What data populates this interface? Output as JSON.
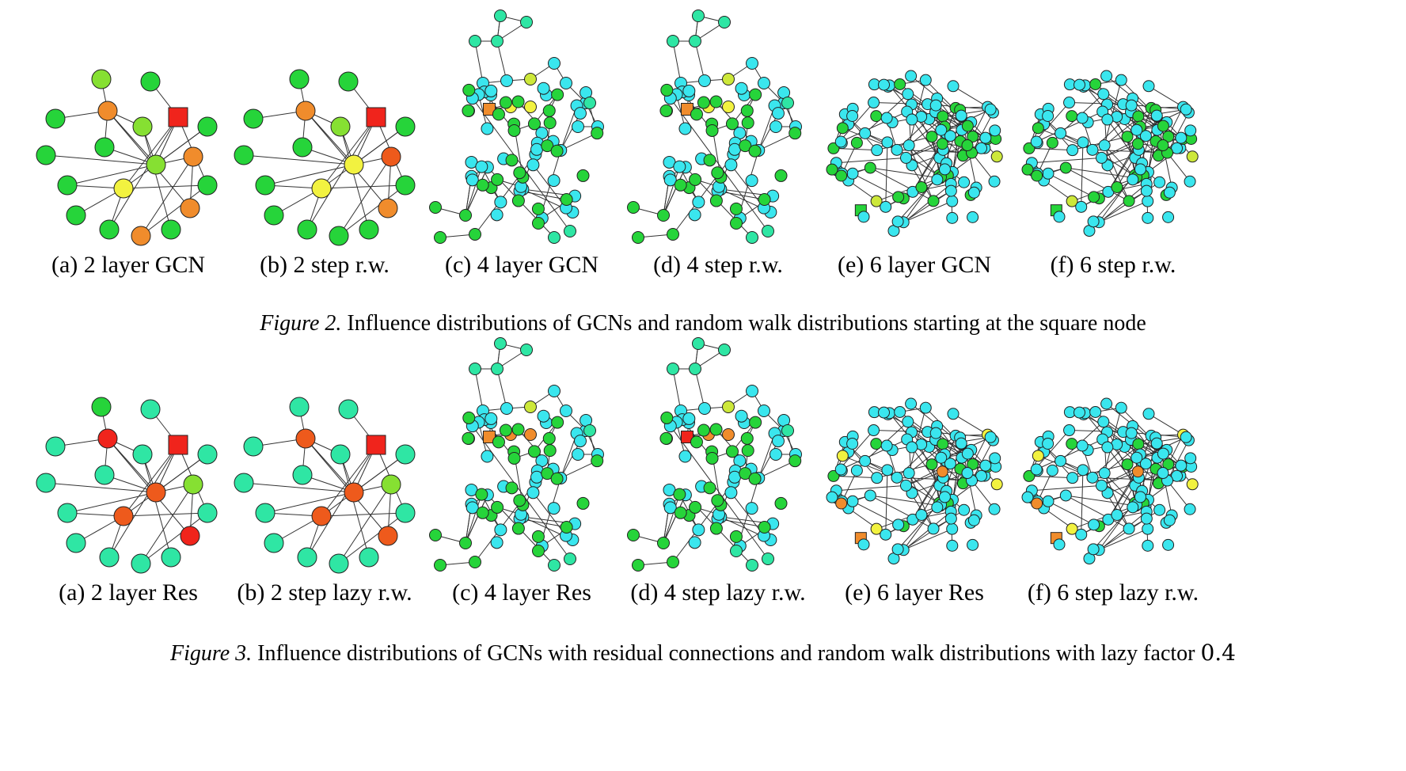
{
  "figures": [
    {
      "id": "fig2",
      "caption_tag": "Figure 2.",
      "caption_text": "Influence distributions of GCNs and random walk distributions starting at the square node",
      "panels": [
        {
          "label": "(a) 2 layer GCN",
          "graph": "small",
          "palette": "p2a"
        },
        {
          "label": "(b) 2 step r.w.",
          "graph": "small",
          "palette": "p2b"
        },
        {
          "label": "(c) 4 layer GCN",
          "graph": "medium",
          "palette": "p2c"
        },
        {
          "label": "(d) 4 step r.w.",
          "graph": "medium",
          "palette": "p2d"
        },
        {
          "label": "(e) 6 layer GCN",
          "graph": "large",
          "palette": "p2e"
        },
        {
          "label": "(f) 6 step r.w.",
          "graph": "large",
          "palette": "p2f"
        }
      ]
    },
    {
      "id": "fig3",
      "caption_tag": "Figure 3.",
      "caption_text": "Influence distributions of GCNs with residual connections and random walk distributions with lazy factor",
      "caption_number": "0.4",
      "panels": [
        {
          "label": "(a) 2 layer Res",
          "graph": "small",
          "palette": "p3a"
        },
        {
          "label": "(b) 2 step lazy r.w.",
          "graph": "small",
          "palette": "p3b"
        },
        {
          "label": "(c) 4 layer Res",
          "graph": "medium",
          "palette": "p3c"
        },
        {
          "label": "(d) 4 step lazy r.w.",
          "graph": "medium",
          "palette": "p3d"
        },
        {
          "label": "(e) 6 layer Res",
          "graph": "large",
          "palette": "p3e"
        },
        {
          "label": "(f) 6 step lazy r.w.",
          "graph": "large",
          "palette": "p3f"
        }
      ]
    }
  ],
  "colors": {
    "red": "#f0241c",
    "orange_red": "#ee5a1c",
    "orange": "#f08c2c",
    "yellow": "#f2f240",
    "yellow_green": "#cde83a",
    "lime": "#86e032",
    "green": "#26d43a",
    "mint": "#2fe6a4",
    "teal_green": "#38e9b6",
    "cyan": "#3ae6ee",
    "stroke": "#222222",
    "edge": "#333333"
  }
}
